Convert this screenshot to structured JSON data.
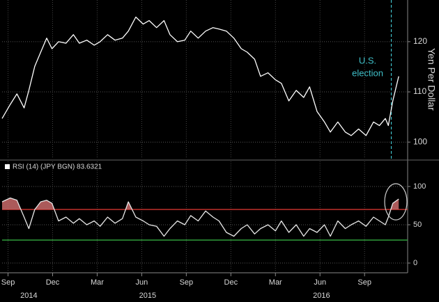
{
  "chart_data": [
    {
      "type": "line",
      "y_label": "Yen Per Dollar",
      "x": [
        -0.4,
        0.15,
        0.6,
        1.08,
        1.4,
        1.8,
        2.2,
        2.6,
        2.96,
        3.4,
        3.9,
        4.4,
        4.8,
        5.3,
        5.8,
        6.2,
        6.7,
        7.2,
        7.7,
        8.1,
        8.6,
        9.1,
        9.5,
        10.0,
        10.5,
        10.9,
        11.4,
        11.9,
        12.3,
        12.8,
        13.3,
        13.8,
        14.2,
        14.7,
        15.2,
        15.7,
        16.1,
        16.6,
        17.0,
        17.5,
        18.0,
        18.4,
        18.9,
        19.4,
        19.9,
        20.3,
        20.8,
        21.3,
        21.7,
        22.2,
        22.7,
        23.1,
        23.6,
        24.1,
        24.6,
        25.0,
        25.4,
        25.6,
        25.9,
        26.3
      ],
      "series": [
        {
          "color": "#ffffff",
          "values": [
            104.7,
            107.5,
            109.6,
            106.8,
            110.3,
            115.1,
            117.9,
            120.7,
            118.6,
            120,
            119.7,
            121.4,
            119.7,
            120.3,
            119.3,
            120,
            121.4,
            120.3,
            120.7,
            122.1,
            124.9,
            123.5,
            124.2,
            122.8,
            124.2,
            121.4,
            120,
            120.3,
            122.1,
            120.7,
            122.1,
            122.8,
            122.5,
            122.1,
            120.7,
            118.6,
            117.9,
            116.5,
            113.1,
            113.8,
            112.4,
            111.7,
            108.2,
            110.3,
            108.9,
            111,
            106.1,
            104,
            102,
            104,
            102,
            101.3,
            102.6,
            101.3,
            104,
            103.3,
            104.7,
            103.3,
            108.2,
            113.1
          ]
        }
      ],
      "xlim": [
        -0.4,
        26.9
      ],
      "ylim": [
        96.7,
        128.3
      ],
      "yticks": [
        100,
        110,
        120
      ],
      "grid": true,
      "annotation": {
        "lines": [
          "U.S.",
          "election"
        ],
        "x": 25.8,
        "color": "#3fbfc8"
      }
    },
    {
      "type": "line",
      "x": [
        -0.4,
        0.15,
        0.6,
        1.08,
        1.4,
        1.8,
        2.2,
        2.6,
        2.96,
        3.4,
        3.9,
        4.4,
        4.8,
        5.3,
        5.8,
        6.2,
        6.7,
        7.2,
        7.7,
        8.1,
        8.6,
        9.1,
        9.5,
        10.0,
        10.5,
        10.9,
        11.4,
        11.9,
        12.3,
        12.8,
        13.3,
        13.8,
        14.2,
        14.7,
        15.2,
        15.7,
        16.1,
        16.6,
        17.0,
        17.5,
        18.0,
        18.4,
        18.9,
        19.4,
        19.9,
        20.3,
        20.8,
        21.3,
        21.7,
        22.2,
        22.7,
        23.1,
        23.6,
        24.1,
        24.6,
        25.0,
        25.4,
        25.6,
        25.9,
        26.3
      ],
      "series": [
        {
          "name": "RSI (14) (JPY BGN) 83.6321",
          "color": "#e8e8e8",
          "values": [
            80,
            85,
            82,
            60,
            45,
            70,
            80,
            82,
            78,
            55,
            60,
            52,
            58,
            50,
            55,
            48,
            60,
            52,
            58,
            80,
            60,
            55,
            50,
            48,
            35,
            45,
            55,
            50,
            62,
            55,
            68,
            60,
            55,
            40,
            35,
            45,
            50,
            38,
            45,
            50,
            42,
            55,
            40,
            50,
            35,
            45,
            40,
            50,
            35,
            55,
            45,
            50,
            55,
            48,
            60,
            55,
            50,
            60,
            78,
            83.6
          ]
        }
      ],
      "reference_lines": [
        {
          "value": 70,
          "color": "#c0302a"
        },
        {
          "value": 30,
          "color": "#2f9e3a"
        }
      ],
      "overbought_fill": "#c96a6a",
      "xlim": [
        -0.4,
        26.9
      ],
      "ylim": [
        -12.7,
        132.7
      ],
      "yticks": [
        0,
        50,
        100
      ],
      "grid": true,
      "xticks": [
        {
          "value": 0,
          "label": "Sep"
        },
        {
          "value": 3,
          "label": "Dec"
        },
        {
          "value": 6,
          "label": "Mar"
        },
        {
          "value": 9,
          "label": "Jun"
        },
        {
          "value": 12,
          "label": "Sep"
        },
        {
          "value": 15,
          "label": "Dec"
        },
        {
          "value": 18,
          "label": "Mar"
        },
        {
          "value": 21,
          "label": "Jun"
        },
        {
          "value": 24,
          "label": "Sep"
        }
      ],
      "year_labels": [
        {
          "value": 1.4,
          "label": "2014"
        },
        {
          "value": 9.4,
          "label": "2015"
        },
        {
          "value": 21.1,
          "label": "2016"
        }
      ]
    }
  ]
}
